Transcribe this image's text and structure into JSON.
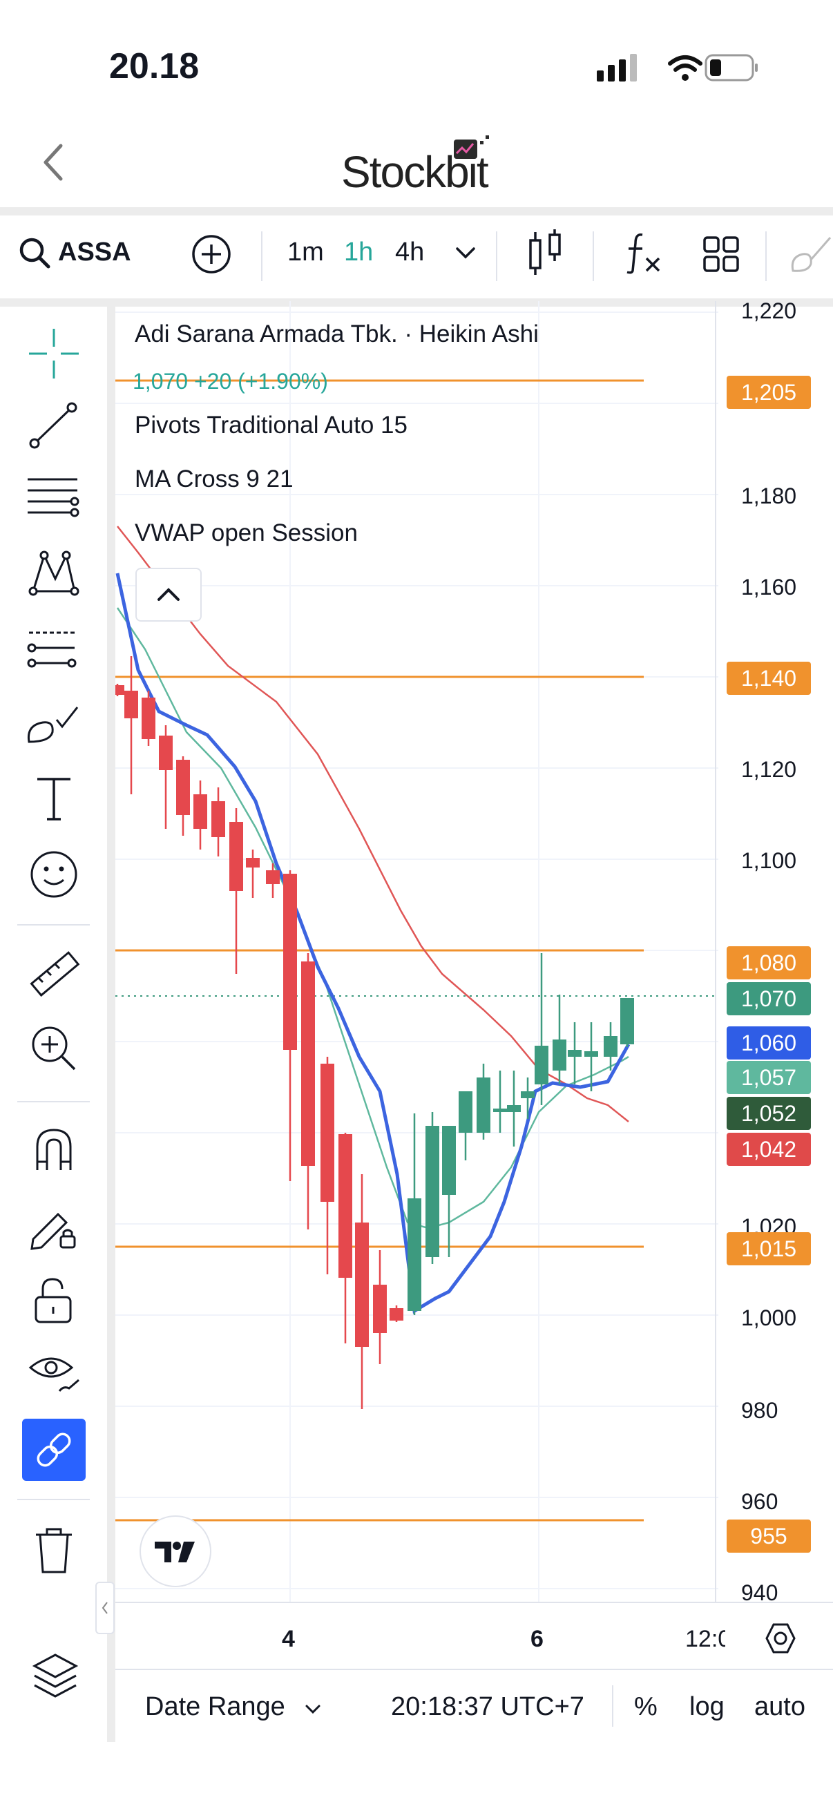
{
  "status_bar": {
    "time": "20.18"
  },
  "header": {
    "logo_text": "Stockbit",
    "back_icon": "chevron-left-icon"
  },
  "toolbar": {
    "symbol": "ASSA",
    "intervals": [
      "1m",
      "1h",
      "4h"
    ],
    "active_interval": "1h",
    "colors": {
      "active": "#26a69a"
    }
  },
  "chart": {
    "legend": {
      "title": "Adi Sarana Armada Tbk. · Heikin Ashi",
      "quote": "1,070  +20 (+1.90%)",
      "indicators": [
        "Pivots Traditional Auto 15",
        "MA Cross 9 21",
        "VWAP open Session"
      ]
    },
    "price_axis": [
      "1,220",
      "1,180",
      "1,160",
      "1,120",
      "1,100",
      "1,020",
      "1,000",
      "980",
      "960",
      "940"
    ],
    "time_axis": [
      "4",
      "6",
      "12:0"
    ],
    "badges": [
      {
        "text": "1,205",
        "color": "#f0922d"
      },
      {
        "text": "1,140",
        "color": "#f0922d"
      },
      {
        "text": "1,080",
        "color": "#f0922d"
      },
      {
        "text": "1,070",
        "color": "#3d9a7f"
      },
      {
        "text": "1,060",
        "color": "#2f5de6"
      },
      {
        "text": "1,057",
        "color": "#5fb89e"
      },
      {
        "text": "1,052",
        "color": "#2f5b3a"
      },
      {
        "text": "1,042",
        "color": "#e04a4a"
      },
      {
        "text": "1,015",
        "color": "#f0922d"
      },
      {
        "text": "955",
        "color": "#f0922d"
      }
    ],
    "pivot_levels": [
      1205,
      1140,
      1080,
      1015,
      955
    ],
    "last_price": 1070
  },
  "bottom_bar": {
    "date_range": "Date Range",
    "time": "20:18:37 UTC+7",
    "percent": "%",
    "log": "log",
    "auto": "auto"
  }
}
